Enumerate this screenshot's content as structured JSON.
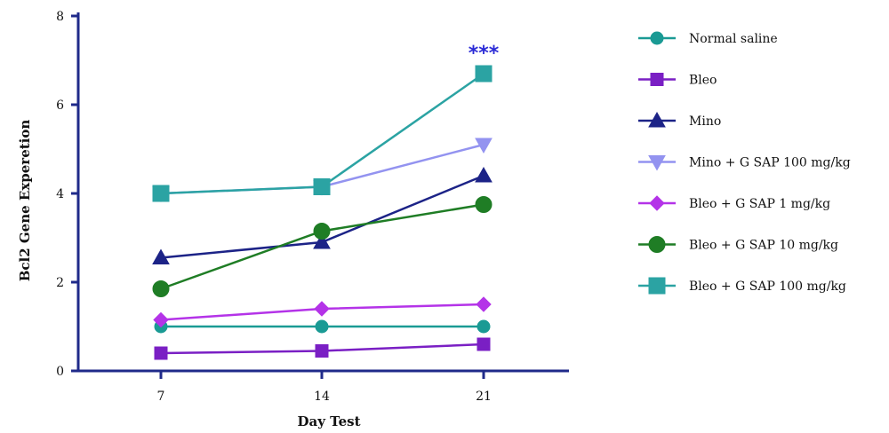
{
  "chart_data": {
    "type": "line",
    "xlabel": "Day Test",
    "ylabel": "Bcl2 Gene Experetion",
    "x": [
      7,
      14,
      21
    ],
    "x_ticks": [
      "7",
      "14",
      "21"
    ],
    "y_ticks": [
      "0",
      "2",
      "4",
      "6",
      "8"
    ],
    "ylim": [
      0,
      8
    ],
    "grid": false,
    "legend_position": "right",
    "series": [
      {
        "name": "Normal saline",
        "values": [
          1.0,
          1.0,
          1.0
        ],
        "color": "#1a9a94",
        "marker": "circle"
      },
      {
        "name": "Bleo",
        "values": [
          0.4,
          0.45,
          0.6
        ],
        "color": "#7a1fc4",
        "marker": "square"
      },
      {
        "name": "Mino",
        "values": [
          2.55,
          2.9,
          4.4
        ],
        "color": "#1c2387",
        "marker": "triangle-up"
      },
      {
        "name": "Mino + G SAP 100 mg/kg",
        "values": [
          4.0,
          4.15,
          5.1
        ],
        "color": "#9393f0",
        "marker": "triangle-down"
      },
      {
        "name": "Bleo + G SAP 1 mg/kg",
        "values": [
          1.15,
          1.4,
          1.5
        ],
        "color": "#b433e8",
        "marker": "diamond"
      },
      {
        "name": "Bleo + G SAP 10 mg/kg",
        "values": [
          1.85,
          3.15,
          3.75
        ],
        "color": "#1f7d25",
        "marker": "circle-large"
      },
      {
        "name": "Bleo + G SAP 100 mg/kg",
        "values": [
          4.0,
          4.15,
          6.7
        ],
        "color": "#2ba3a3",
        "marker": "square-large"
      }
    ],
    "annotations": [
      {
        "text": "***",
        "x": 21,
        "y": 6.7,
        "color": "#2b2bd6"
      }
    ]
  }
}
